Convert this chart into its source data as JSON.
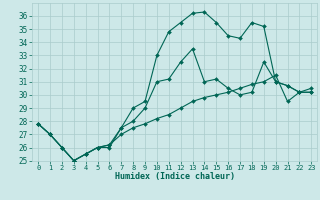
{
  "xlabel": "Humidex (Indice chaleur)",
  "xlim": [
    -0.5,
    23.5
  ],
  "ylim": [
    25,
    37
  ],
  "yticks": [
    25,
    26,
    27,
    28,
    29,
    30,
    31,
    32,
    33,
    34,
    35,
    36
  ],
  "xticks": [
    0,
    1,
    2,
    3,
    4,
    5,
    6,
    7,
    8,
    9,
    10,
    11,
    12,
    13,
    14,
    15,
    16,
    17,
    18,
    19,
    20,
    21,
    22,
    23
  ],
  "bg_color": "#cde8e8",
  "grid_color": "#aacccc",
  "line_color": "#006655",
  "series": [
    [
      27.8,
      27.0,
      26.0,
      25.0,
      25.5,
      26.0,
      26.0,
      27.5,
      29.0,
      29.5,
      33.0,
      34.8,
      35.5,
      36.2,
      36.3,
      35.5,
      34.5,
      34.3,
      35.5,
      35.2,
      31.0,
      30.7,
      30.2,
      30.2
    ],
    [
      27.8,
      27.0,
      26.0,
      25.0,
      25.5,
      26.0,
      26.2,
      27.5,
      28.0,
      29.0,
      31.0,
      31.2,
      32.5,
      33.5,
      31.0,
      31.2,
      30.5,
      30.0,
      30.2,
      32.5,
      31.0,
      30.7,
      30.2,
      30.2
    ],
    [
      27.8,
      27.0,
      26.0,
      25.0,
      25.5,
      26.0,
      26.2,
      27.0,
      27.5,
      27.8,
      28.2,
      28.5,
      29.0,
      29.5,
      29.8,
      30.0,
      30.2,
      30.5,
      30.8,
      31.0,
      31.5,
      29.5,
      30.2,
      30.5
    ]
  ]
}
